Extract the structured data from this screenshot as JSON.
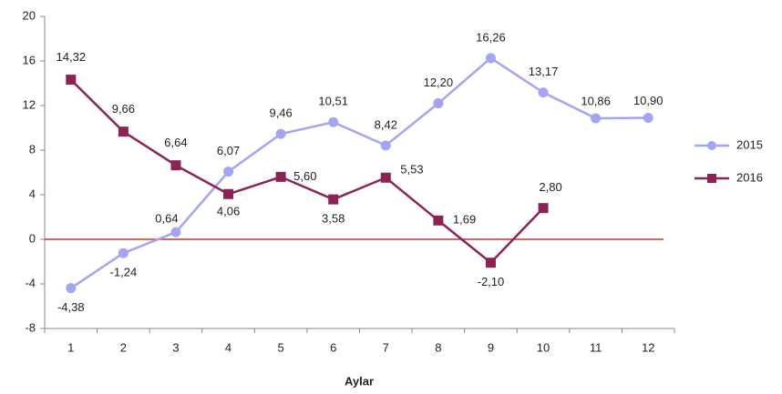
{
  "chart_data": {
    "type": "line",
    "x_label": "Aylar",
    "categories": [
      "1",
      "2",
      "3",
      "4",
      "5",
      "6",
      "7",
      "8",
      "9",
      "10",
      "11",
      "12"
    ],
    "series": [
      {
        "name": "2015",
        "color": "#a4a4f2",
        "values": [
          -4.38,
          -1.24,
          0.64,
          6.07,
          9.46,
          10.51,
          8.42,
          12.2,
          16.26,
          13.17,
          10.86,
          10.9
        ],
        "value_labels": [
          "-4,38",
          "-1,24",
          "0,64",
          "6,07",
          "9,46",
          "10,51",
          "8,42",
          "12,20",
          "16,26",
          "13,17",
          "10,86",
          "10,90"
        ]
      },
      {
        "name": "2016",
        "color": "#8c2355",
        "values": [
          14.32,
          9.66,
          6.64,
          4.06,
          5.6,
          3.58,
          5.53,
          1.69,
          -2.1,
          2.8,
          null,
          null
        ],
        "value_labels": [
          "14,32",
          "9,66",
          "6,64",
          "4,06",
          "5,60",
          "3,58",
          "5,53",
          "1,69",
          "-2,10",
          "2,80",
          null,
          null
        ]
      }
    ],
    "ylim": [
      -8,
      20
    ],
    "yticks": [
      -8,
      -4,
      0,
      4,
      8,
      12,
      16,
      20
    ],
    "zero_line_color": "#c0392b",
    "legend": "right"
  }
}
